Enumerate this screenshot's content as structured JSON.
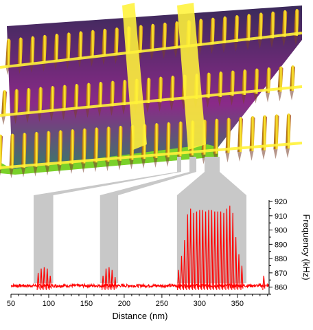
{
  "chart_data": {
    "type": "line",
    "xlabel": "Distance (nm)",
    "ylabel": "Frequency (kHz)",
    "xlim": [
      50,
      392
    ],
    "ylim": [
      855,
      921
    ],
    "x_ticks": [
      50,
      100,
      150,
      200,
      250,
      300,
      350
    ],
    "y_ticks": [
      860,
      870,
      880,
      890,
      900,
      910,
      920
    ],
    "grid": false,
    "baseline_khz": 861,
    "highlight_regions": [
      {
        "x_range": [
          80,
          106
        ]
      },
      {
        "x_range": [
          168,
          192
        ]
      },
      {
        "x_range": [
          270,
          362
        ]
      }
    ],
    "series": [
      {
        "color": "#ff0000",
        "peaks": [
          {
            "x": 86,
            "y": 870
          },
          {
            "x": 90,
            "y": 873
          },
          {
            "x": 94,
            "y": 874
          },
          {
            "x": 98,
            "y": 873
          },
          {
            "x": 102,
            "y": 868
          },
          {
            "x": 172,
            "y": 868
          },
          {
            "x": 176,
            "y": 873
          },
          {
            "x": 180,
            "y": 874
          },
          {
            "x": 184,
            "y": 872
          },
          {
            "x": 188,
            "y": 867
          },
          {
            "x": 272,
            "y": 872
          },
          {
            "x": 276,
            "y": 882
          },
          {
            "x": 280,
            "y": 893
          },
          {
            "x": 284,
            "y": 911
          },
          {
            "x": 288,
            "y": 915
          },
          {
            "x": 292,
            "y": 912
          },
          {
            "x": 296,
            "y": 913
          },
          {
            "x": 300,
            "y": 914
          },
          {
            "x": 304,
            "y": 914
          },
          {
            "x": 308,
            "y": 913
          },
          {
            "x": 312,
            "y": 914
          },
          {
            "x": 316,
            "y": 914
          },
          {
            "x": 320,
            "y": 913
          },
          {
            "x": 324,
            "y": 913
          },
          {
            "x": 328,
            "y": 913
          },
          {
            "x": 332,
            "y": 912
          },
          {
            "x": 336,
            "y": 915
          },
          {
            "x": 340,
            "y": 917
          },
          {
            "x": 344,
            "y": 912
          },
          {
            "x": 348,
            "y": 895
          },
          {
            "x": 352,
            "y": 883
          },
          {
            "x": 356,
            "y": 875
          },
          {
            "x": 385,
            "y": 868
          }
        ]
      }
    ]
  },
  "surface": {
    "colors": {
      "top": "#fff23a",
      "ridge": "#d8a012",
      "shadow": "#7a3f2a",
      "dark": "#3a2a5a",
      "magenta": "#8a2a88",
      "base": "#7ad12a",
      "connector": "#c8c8c8"
    }
  }
}
